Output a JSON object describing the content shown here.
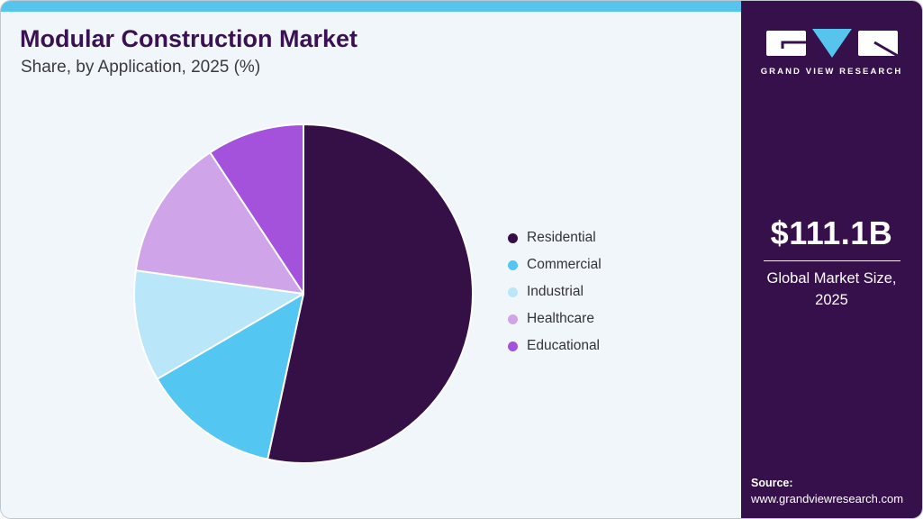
{
  "header": {
    "title": "Modular Construction Market",
    "subtitle": "Share, by Application, 2025 (%)"
  },
  "chart_data": {
    "type": "pie",
    "title": "Modular Construction Market Share, by Application, 2025 (%)",
    "categories": [
      "Residential",
      "Commercial",
      "Industrial",
      "Healthcare",
      "Educational"
    ],
    "values": [
      53.4,
      13.2,
      10.6,
      13.5,
      9.3
    ],
    "unit": "%",
    "colors": [
      "#351047",
      "#54c6f2",
      "#bae6f9",
      "#cfa4e9",
      "#a452dc"
    ],
    "start_angle_deg": 0,
    "direction": "clockwise",
    "legend_position": "right",
    "data_labels_shown": false
  },
  "sidebar": {
    "logo_text": "GRAND VIEW RESEARCH",
    "market_size_value": "$111.1B",
    "market_size_label": "Global Market Size, 2025",
    "source_label": "Source:",
    "source_url": "www.grandviewresearch.com"
  },
  "theme": {
    "accent_bar": "#57c4ee",
    "panel_bg": "#f1f6fa",
    "sidebar_bg": "#36104a",
    "title_color": "#3a1253",
    "subtitle_color": "#3a3a42",
    "legend_text_color": "#33333a"
  }
}
